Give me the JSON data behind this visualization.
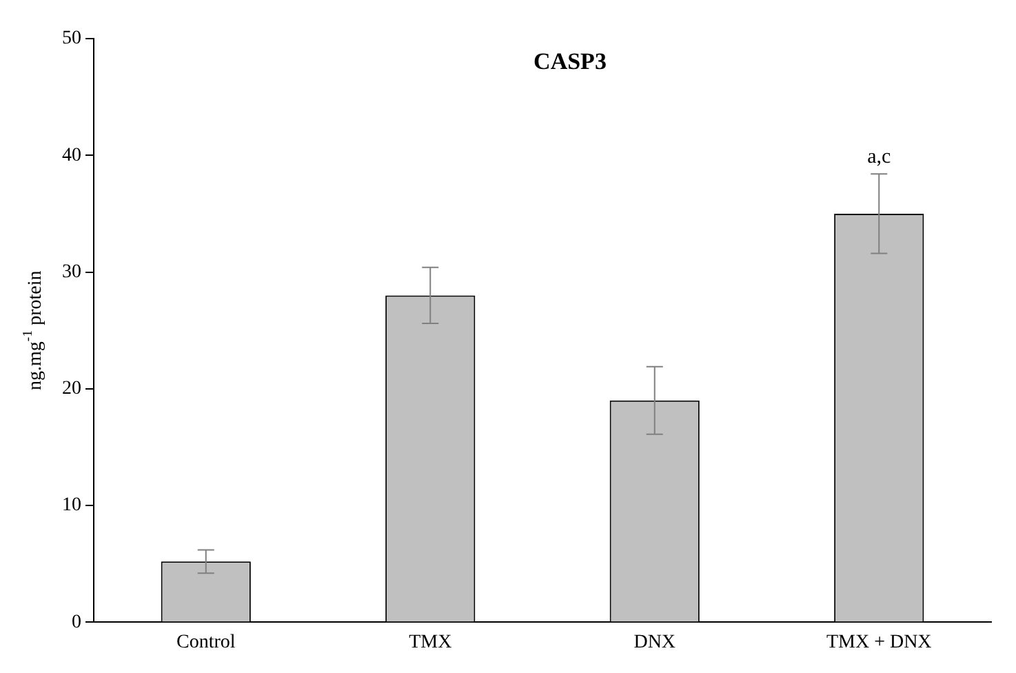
{
  "chart_data": {
    "type": "bar",
    "title": "CASP3",
    "ylabel": "ng.mg$^{-1}$ protein",
    "categories": [
      "Control",
      "TMX",
      "DNX",
      "TMX + DNX"
    ],
    "values": [
      5.2,
      28,
      19,
      35
    ],
    "errors": [
      1,
      2.4,
      2.9,
      3.4
    ],
    "color": "#c0c0c0",
    "ylim": [
      0,
      50
    ],
    "yticks": [
      0,
      10,
      20,
      30,
      40,
      50
    ],
    "grid": false,
    "legend": false,
    "annotations": [
      {
        "text": "a,c",
        "x": "TMX + DNX",
        "y": 38.4
      }
    ]
  }
}
